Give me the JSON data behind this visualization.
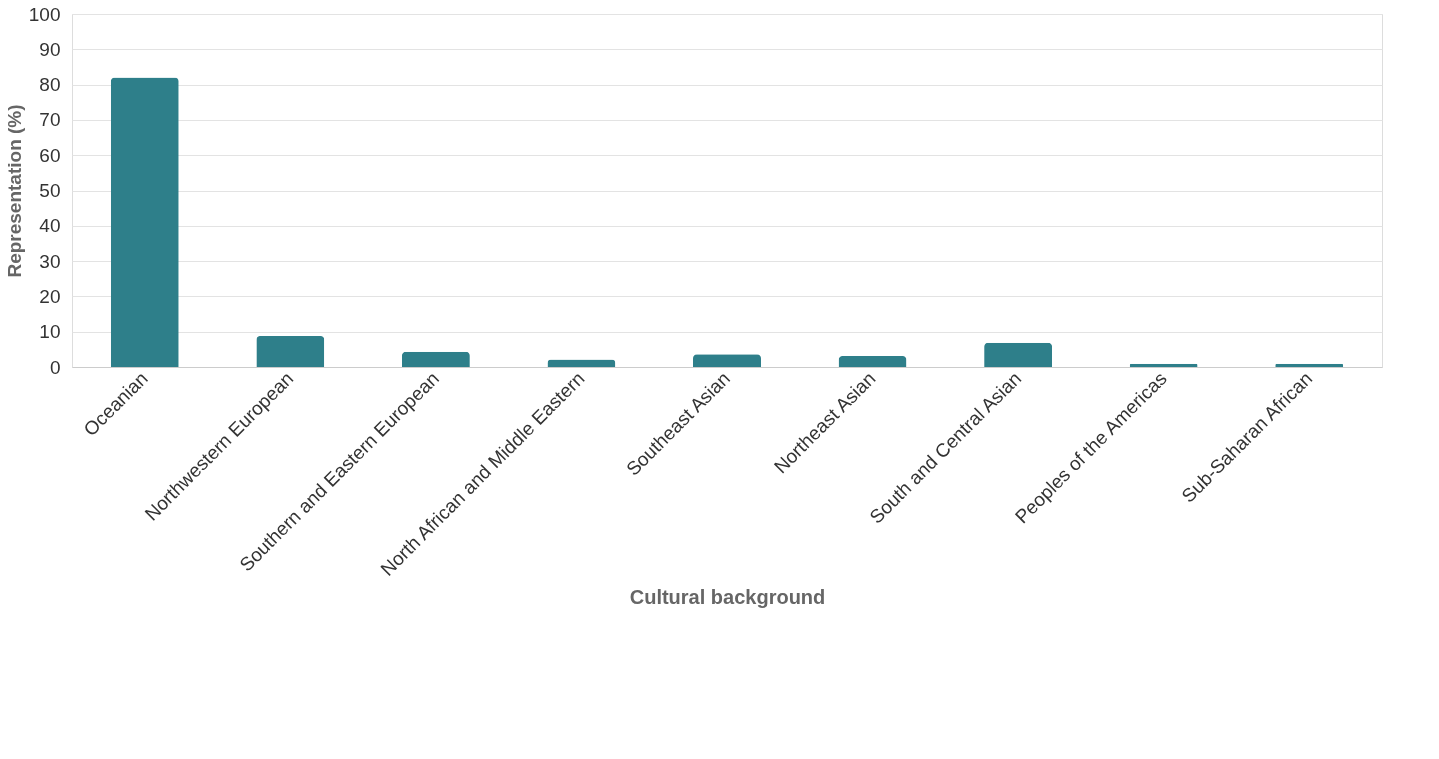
{
  "chart_data": {
    "type": "bar",
    "xlabel": "Cultural background",
    "ylabel": "Representation (%)",
    "categories": [
      "Oceanian",
      "Northwestern European",
      "Southern and Eastern European",
      "North African and Middle Eastern",
      "Southeast Asian",
      "Northeast Asian",
      "South and Central Asian",
      "Peoples of the Americas",
      "Sub-Saharan African"
    ],
    "values": [
      82,
      8.8,
      4.3,
      2.1,
      3.6,
      3.1,
      6.9,
      0.9,
      0.9
    ],
    "color": "#2e7f8a",
    "ylim": [
      0,
      100
    ],
    "yticks": [
      0,
      10,
      20,
      30,
      40,
      50,
      60,
      70,
      80,
      90,
      100
    ],
    "grid": "y"
  }
}
